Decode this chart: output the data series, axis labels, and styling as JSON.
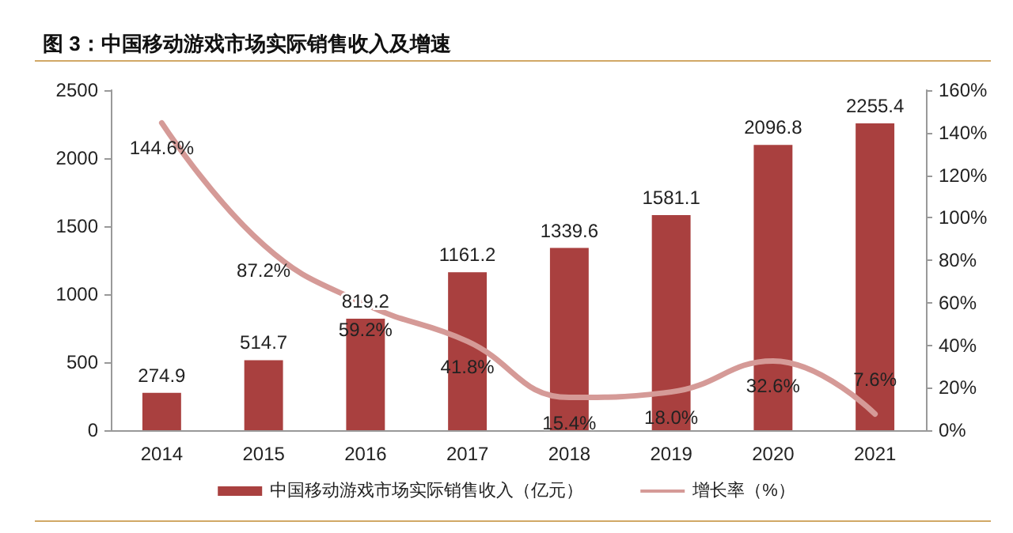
{
  "chart_data": {
    "type": "bar",
    "title": "图 3：中国移动游戏市场实际销售收入及增速",
    "categories": [
      "2014",
      "2015",
      "2016",
      "2017",
      "2018",
      "2019",
      "2020",
      "2021"
    ],
    "series": [
      {
        "name": "中国移动游戏市场实际销售收入（亿元）",
        "color": "#a9403f",
        "values": [
          274.9,
          514.7,
          819.2,
          1161.2,
          1339.6,
          1581.1,
          2096.8,
          2255.4
        ]
      },
      {
        "name": "增长率（%）",
        "type": "line",
        "axis": "y2",
        "color": "#d59a97",
        "marker": "none",
        "line_style": "solid",
        "values": [
          144.6,
          87.2,
          59.2,
          41.8,
          15.4,
          18.0,
          32.6,
          7.6
        ],
        "value_labels": [
          "144.6%",
          "87.2%",
          "59.2%",
          "41.8%",
          "15.4%",
          "18.0%",
          "32.6%",
          "7.6%"
        ]
      }
    ],
    "ylim": [
      0,
      2500
    ],
    "yticks": [
      0,
      500,
      1000,
      1500,
      2000,
      2500
    ],
    "y2lim": [
      0,
      160
    ],
    "y2ticks": [
      {
        "value": 0,
        "label": "0%"
      },
      {
        "value": 20,
        "label": "20%"
      },
      {
        "value": 40,
        "label": "40%"
      },
      {
        "value": 60,
        "label": "60%"
      },
      {
        "value": 80,
        "label": "80%"
      },
      {
        "value": 100,
        "label": "100%"
      },
      {
        "value": 120,
        "label": "120%"
      },
      {
        "value": 140,
        "label": "140%"
      },
      {
        "value": 160,
        "label": "160%"
      }
    ],
    "data_labels": true,
    "grid": false,
    "legend": "bottom"
  }
}
